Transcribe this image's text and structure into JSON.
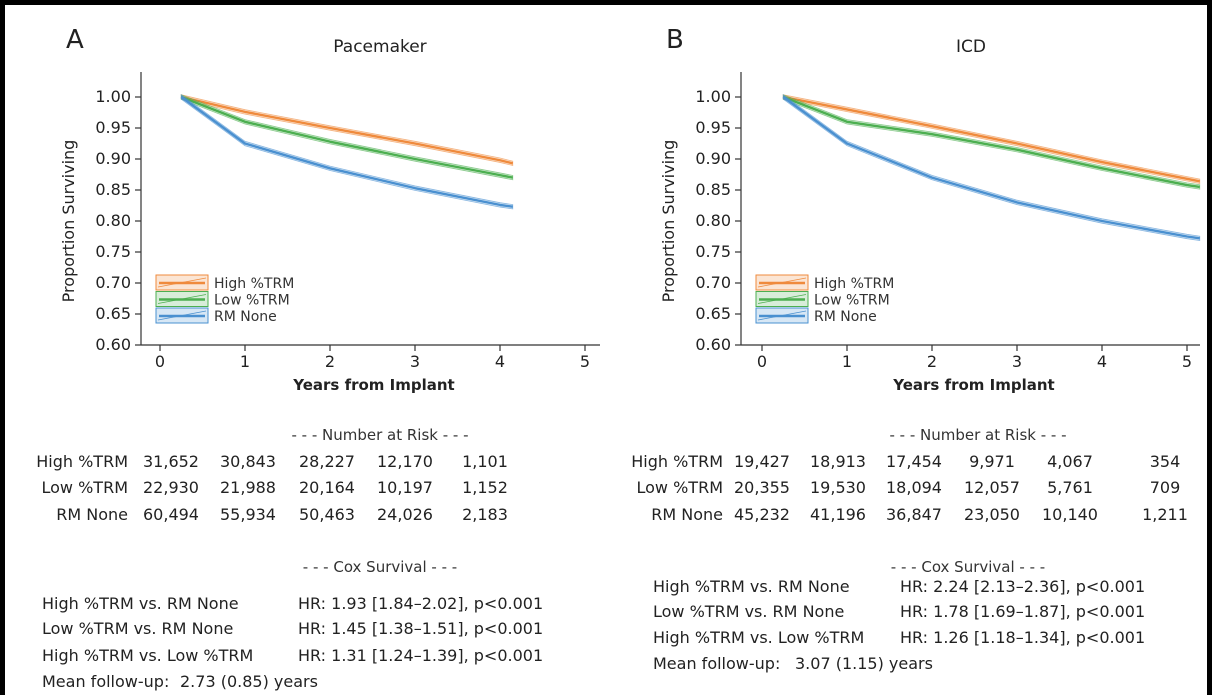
{
  "chart_data": [
    {
      "type": "line",
      "panel_letter": "A",
      "title": "Pacemaker",
      "xlabel": "Years from Implant",
      "ylabel": "Proportion Surviving",
      "xlim": [
        -0.2,
        5.2
      ],
      "ylim": [
        0.6,
        1.0
      ],
      "xticks": [
        "0",
        "1",
        "2",
        "3",
        "4",
        "5"
      ],
      "yticks": [
        "1.00",
        "0.95",
        "0.90",
        "0.85",
        "0.80",
        "0.75",
        "0.70",
        "0.65",
        "0.60"
      ],
      "legend": {
        "placement": "bottom-left",
        "entries": [
          "High %TRM",
          "Low %TRM",
          "RM None"
        ]
      },
      "series": [
        {
          "name": "High %TRM",
          "color": "#ef8a3c",
          "x": [
            0.25,
            1,
            2,
            3,
            4,
            4.15
          ],
          "y": [
            1.0,
            0.976,
            0.95,
            0.925,
            0.898,
            0.893
          ]
        },
        {
          "name": "Low %TRM",
          "color": "#4caf50",
          "x": [
            0.25,
            1,
            2,
            3,
            4,
            4.15
          ],
          "y": [
            1.0,
            0.96,
            0.928,
            0.9,
            0.874,
            0.87
          ]
        },
        {
          "name": "RM None",
          "color": "#4a90d0",
          "x": [
            0.25,
            1,
            2,
            3,
            4,
            4.15
          ],
          "y": [
            1.0,
            0.925,
            0.885,
            0.853,
            0.826,
            0.823
          ]
        }
      ],
      "risk_table": {
        "heading": "- - - Number at Risk - - -",
        "rows": [
          {
            "label": "High %TRM",
            "values": [
              "31,652",
              "30,843",
              "28,227",
              "12,170",
              "1,101"
            ]
          },
          {
            "label": "Low %TRM",
            "values": [
              "22,930",
              "21,988",
              "20,164",
              "10,197",
              "1,152"
            ]
          },
          {
            "label": "RM None",
            "values": [
              "60,494",
              "55,934",
              "50,463",
              "24,026",
              "2,183"
            ]
          }
        ]
      },
      "cox": {
        "heading": "- - -   Cox Survival   - - -",
        "rows": [
          {
            "label": "High %TRM vs. RM None",
            "value": "HR: 1.93 [1.84–2.02], p<0.001"
          },
          {
            "label": "Low %TRM vs. RM None",
            "value": "HR: 1.45 [1.38–1.51], p<0.001"
          },
          {
            "label": "High %TRM vs. Low %TRM",
            "value": "HR: 1.31 [1.24–1.39], p<0.001"
          }
        ],
        "followup_label": "Mean follow-up:",
        "followup_value": "2.73 (0.85) years"
      }
    },
    {
      "type": "line",
      "panel_letter": "B",
      "title": "ICD",
      "xlabel": "Years from Implant",
      "ylabel": "Proportion Surviving",
      "xlim": [
        -0.2,
        5.2
      ],
      "ylim": [
        0.6,
        1.0
      ],
      "xticks": [
        "0",
        "1",
        "2",
        "3",
        "4",
        "5"
      ],
      "yticks": [
        "1.00",
        "0.95",
        "0.90",
        "0.85",
        "0.80",
        "0.75",
        "0.70",
        "0.65",
        "0.60"
      ],
      "legend": {
        "placement": "bottom-left",
        "entries": [
          "High %TRM",
          "Low %TRM",
          "RM None"
        ]
      },
      "series": [
        {
          "name": "High %TRM",
          "color": "#ef8a3c",
          "x": [
            0.25,
            1,
            2,
            3,
            4,
            5,
            5.15
          ],
          "y": [
            1.0,
            0.98,
            0.953,
            0.925,
            0.895,
            0.868,
            0.864
          ]
        },
        {
          "name": "Low %TRM",
          "color": "#4caf50",
          "x": [
            0.25,
            1,
            2,
            3,
            4,
            5,
            5.15
          ],
          "y": [
            1.0,
            0.96,
            0.94,
            0.915,
            0.885,
            0.858,
            0.855
          ]
        },
        {
          "name": "RM None",
          "color": "#4a90d0",
          "x": [
            0.25,
            1,
            2,
            3,
            4,
            5,
            5.15
          ],
          "y": [
            1.0,
            0.925,
            0.87,
            0.83,
            0.8,
            0.775,
            0.772
          ]
        }
      ],
      "risk_table": {
        "heading": "- - - Number at Risk - - -",
        "rows": [
          {
            "label": "High %TRM",
            "values": [
              "19,427",
              "18,913",
              "17,454",
              "9,971",
              "4,067",
              "354"
            ]
          },
          {
            "label": "Low %TRM",
            "values": [
              "20,355",
              "19,530",
              "18,094",
              "12,057",
              "5,761",
              "709"
            ]
          },
          {
            "label": "RM None",
            "values": [
              "45,232",
              "41,196",
              "36,847",
              "23,050",
              "10,140",
              "1,211"
            ]
          }
        ]
      },
      "cox": {
        "heading": "- - -   Cox Survival   - - -",
        "rows": [
          {
            "label": "High %TRM vs. RM None",
            "value": "HR: 2.24 [2.13–2.36], p<0.001"
          },
          {
            "label": "Low %TRM vs. RM None",
            "value": "HR: 1.78 [1.69–1.87], p<0.001"
          },
          {
            "label": "High %TRM vs. Low %TRM",
            "value": "HR: 1.26 [1.18–1.34], p<0.001"
          }
        ],
        "followup_label": "Mean follow-up:",
        "followup_value": "3.07 (1.15) years"
      }
    }
  ]
}
